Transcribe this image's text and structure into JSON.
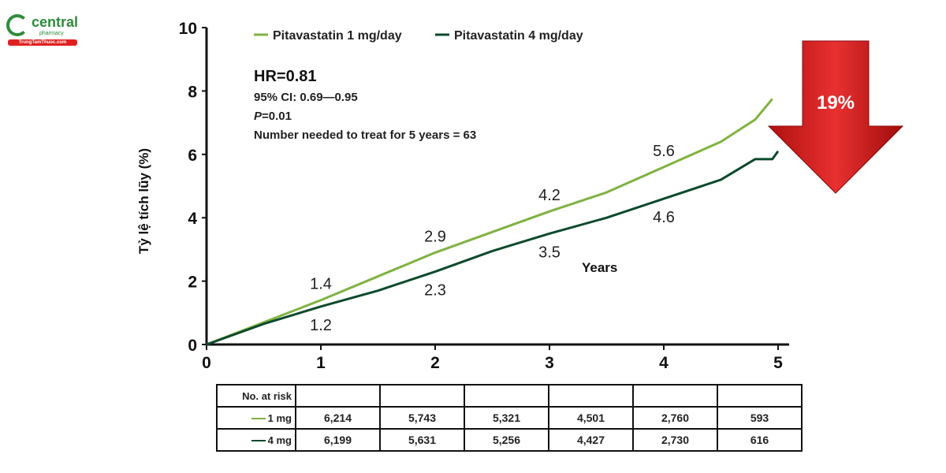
{
  "logo": {
    "brand": "central",
    "sub": "pharmacy",
    "url": "TrungTamThuoc.com"
  },
  "colors": {
    "mg1": "#7fb241",
    "mg4": "#0c4a2c",
    "arrow": "#d42020"
  },
  "chart_data": {
    "type": "line",
    "ylabel": "Tỷ lệ tích lũy (%)",
    "xlabel": "Years",
    "xlim": [
      0,
      5
    ],
    "ylim": [
      0,
      10
    ],
    "xticks": [
      0,
      1,
      2,
      3,
      4,
      5
    ],
    "yticks": [
      0,
      2,
      4,
      6,
      8,
      10
    ],
    "legend": "top",
    "series": [
      {
        "name": "Pitavastatin 1 mg/day",
        "x": [
          0,
          0.5,
          1,
          1.5,
          2,
          2.5,
          3,
          3.5,
          4,
          4.5,
          4.8,
          4.95
        ],
        "y": [
          0,
          0.7,
          1.4,
          2.15,
          2.9,
          3.55,
          4.2,
          4.8,
          5.6,
          6.4,
          7.1,
          7.75
        ]
      },
      {
        "name": "Pitavastatin 4 mg/day",
        "x": [
          0,
          0.5,
          1,
          1.5,
          2,
          2.5,
          3,
          3.5,
          4,
          4.5,
          4.8,
          4.95,
          5
        ],
        "y": [
          0,
          0.65,
          1.2,
          1.7,
          2.3,
          2.95,
          3.5,
          4.0,
          4.6,
          5.2,
          5.85,
          5.85,
          6.1
        ]
      }
    ],
    "point_labels": [
      {
        "series": 0,
        "x": 1,
        "y": 1.4,
        "text": "1.4"
      },
      {
        "series": 0,
        "x": 2,
        "y": 2.9,
        "text": "2.9"
      },
      {
        "series": 0,
        "x": 3,
        "y": 4.2,
        "text": "4.2"
      },
      {
        "series": 0,
        "x": 4,
        "y": 5.6,
        "text": "5.6"
      },
      {
        "series": 1,
        "x": 1,
        "y": 1.2,
        "text": "1.2"
      },
      {
        "series": 1,
        "x": 2,
        "y": 2.3,
        "text": "2.3"
      },
      {
        "series": 1,
        "x": 3,
        "y": 3.5,
        "text": "3.5"
      },
      {
        "series": 1,
        "x": 4,
        "y": 4.6,
        "text": "4.6"
      }
    ],
    "annotations": {
      "hr": "HR=0.81",
      "ci": "95% CI: 0.69—0.95",
      "p_italic": "P",
      "p_value": "=0.01",
      "nnt": "Number needed to treat for 5 years = 63",
      "reduction": "19%"
    }
  },
  "risk_table": {
    "header": "No. at risk",
    "rows": [
      {
        "label": "1 mg",
        "values": [
          "6,214",
          "5,743",
          "5,321",
          "4,501",
          "2,760",
          "593"
        ]
      },
      {
        "label": "4 mg",
        "values": [
          "6,199",
          "5,631",
          "5,256",
          "4,427",
          "2,730",
          "616"
        ]
      }
    ]
  }
}
